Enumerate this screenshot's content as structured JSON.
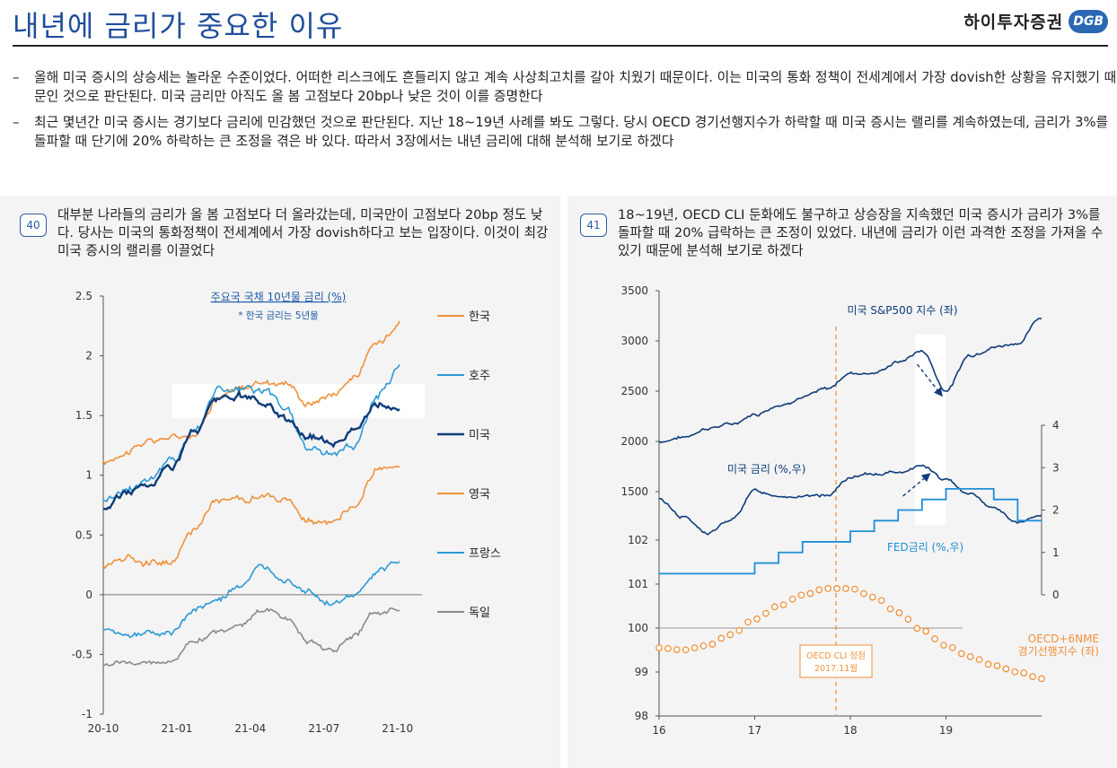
{
  "header": {
    "title": "내년에 금리가 중요한 이유",
    "brand_name": "하이투자증권",
    "brand_logo": "DGB"
  },
  "bullets": [
    {
      "dash": "–",
      "text": "올해 미국 증시의 상승세는 놀라운 수준이었다. 어떠한 리스크에도 흔들리지 않고 계속 사상최고치를 갈아 치웠기 때문이다. 이는 미국의 통화 정책이 전세계에서 가장 dovish한 상황을 유지했기 때문인 것으로 판단된다. 미국 금리만 아직도 올 봄 고점보다 20bp나 낮은 것이 이를 증명한다"
    },
    {
      "dash": "–",
      "text": "최근 몇년간 미국 증시는 경기보다 금리에 민감했던 것으로 판단된다. 지난 18~19년 사례를 봐도 그렇다. 당시 OECD 경기선행지수가 하락할 때 미국 증시는 랠리를 계속하였는데, 금리가 3%를 돌파할 때 단기에 20% 하락하는 큰 조정을 겪은 바 있다. 따라서 3장에서는 내년 금리에 대해 분석해 보기로 하겠다"
    }
  ],
  "panels": [
    {
      "number": "40",
      "description": "대부분 나라들의 금리가 올 봄 고점보다 더 올라갔는데, 미국만이 고점보다 20bp 정도 낮다. 당사는 미국의 통화정책이 전세계에서 가장 dovish하다고 보는 입장이다. 이것이 최강 미국 증시의 랠리를 이끌었다"
    },
    {
      "number": "41",
      "description": "18~19년, OECD CLI 둔화에도 불구하고 상승장을 지속했던 미국 증시가 금리가 3%를 돌파할 때 20% 급락하는 큰 조정이 있었다. 내년에 금리가 이런 과격한 조정을 가져올 수 있기 때문에 분석해 보기로 하겠다"
    }
  ],
  "chart_data": [
    {
      "type": "line",
      "title": "주요국 국채 10년물 금리 (%)",
      "subtitle": "* 한국 금리는 5년물",
      "x_ticks": [
        "20-10",
        "21-01",
        "21-04",
        "21-07",
        "21-10"
      ],
      "y_ticks": [
        "2.5",
        "2",
        "1.5",
        "1",
        "0.5",
        "0",
        "-0.5",
        "-1"
      ],
      "ylim": [
        -1,
        2.5
      ],
      "x": [
        "2020-10",
        "2020-11",
        "2020-12",
        "2021-01",
        "2021-02",
        "2021-03",
        "2021-04",
        "2021-05",
        "2021-06",
        "2021-07",
        "2021-08",
        "2021-09",
        "2021-10",
        "2021-11"
      ],
      "series": [
        {
          "name": "한국",
          "color": "#f0913a",
          "values": [
            1.1,
            1.2,
            1.28,
            1.32,
            1.35,
            1.65,
            1.72,
            1.78,
            1.78,
            1.6,
            1.68,
            1.82,
            2.1,
            2.3
          ]
        },
        {
          "name": "호주",
          "color": "#2b9ad6",
          "values": [
            0.8,
            0.88,
            0.98,
            1.12,
            1.38,
            1.72,
            1.72,
            1.7,
            1.56,
            1.22,
            1.18,
            1.26,
            1.65,
            1.9
          ]
        },
        {
          "name": "미국",
          "color": "#0f3c7a",
          "values": [
            0.72,
            0.86,
            0.92,
            1.08,
            1.36,
            1.62,
            1.66,
            1.6,
            1.48,
            1.32,
            1.28,
            1.38,
            1.58,
            1.55
          ]
        },
        {
          "name": "영국",
          "color": "#f0913a",
          "values": [
            0.24,
            0.32,
            0.28,
            0.28,
            0.55,
            0.8,
            0.8,
            0.82,
            0.78,
            0.62,
            0.58,
            0.72,
            1.06,
            1.05
          ]
        },
        {
          "name": "프랑스",
          "color": "#2b9ad6",
          "values": [
            -0.3,
            -0.32,
            -0.33,
            -0.32,
            -0.12,
            -0.06,
            0.08,
            0.22,
            0.14,
            0.04,
            -0.08,
            -0.02,
            0.18,
            0.27
          ]
        },
        {
          "name": "독일",
          "color": "#8a8a8a",
          "values": [
            -0.58,
            -0.56,
            -0.57,
            -0.55,
            -0.38,
            -0.32,
            -0.24,
            -0.12,
            -0.2,
            -0.38,
            -0.47,
            -0.34,
            -0.15,
            -0.12
          ]
        }
      ],
      "grid": false,
      "legend": "right"
    },
    {
      "type": "line",
      "x_ticks": [
        "16",
        "17",
        "18",
        "19"
      ],
      "left_axis_upper": {
        "ticks": [
          "3500",
          "3000",
          "2500",
          "2000",
          "1500"
        ]
      },
      "left_axis_lower": {
        "ticks": [
          "102",
          "101",
          "100",
          "99",
          "98"
        ],
        "ylim": [
          98,
          102
        ]
      },
      "right_axis": {
        "ticks": [
          "4",
          "3",
          "2",
          "1",
          "0"
        ],
        "ylim": [
          0,
          4
        ]
      },
      "x": [
        2016.0,
        2016.25,
        2016.5,
        2016.75,
        2017.0,
        2017.25,
        2017.5,
        2017.75,
        2018.0,
        2018.25,
        2018.5,
        2018.75,
        2019.0,
        2019.25,
        2019.5,
        2019.75,
        2020.0
      ],
      "series": [
        {
          "name": "미국 S&P500 지수 (좌)",
          "axis": "left_upper",
          "color": "#0f3c7a",
          "values": [
            2000,
            2040,
            2130,
            2170,
            2270,
            2360,
            2440,
            2520,
            2680,
            2680,
            2790,
            2900,
            2510,
            2860,
            2940,
            2980,
            3230
          ]
        },
        {
          "name": "미국 금리 (%,우)",
          "axis": "right",
          "color": "#0f3c7a",
          "values": [
            2.25,
            1.85,
            1.45,
            1.75,
            2.45,
            2.35,
            2.3,
            2.35,
            2.75,
            2.85,
            2.9,
            3.05,
            2.7,
            2.4,
            2.05,
            1.7,
            1.85
          ]
        },
        {
          "name": "FED금리 (%,우)",
          "axis": "right",
          "color": "#1d8fd6",
          "values": [
            0.5,
            0.5,
            0.5,
            0.5,
            0.75,
            1.0,
            1.25,
            1.25,
            1.5,
            1.75,
            2.0,
            2.25,
            2.5,
            2.5,
            2.25,
            1.75,
            1.75
          ]
        },
        {
          "name": "OECD+6NME 경기선행지수 (좌)",
          "axis": "left_lower",
          "color": "#f0913a",
          "values": [
            99.55,
            99.5,
            99.6,
            99.85,
            100.2,
            100.5,
            100.75,
            100.9,
            100.9,
            100.7,
            100.35,
            99.95,
            99.6,
            99.35,
            99.15,
            99.0,
            98.85
          ]
        }
      ],
      "annotations": [
        "OECD CLI 정점",
        "2017.11월"
      ],
      "grid": false
    }
  ]
}
